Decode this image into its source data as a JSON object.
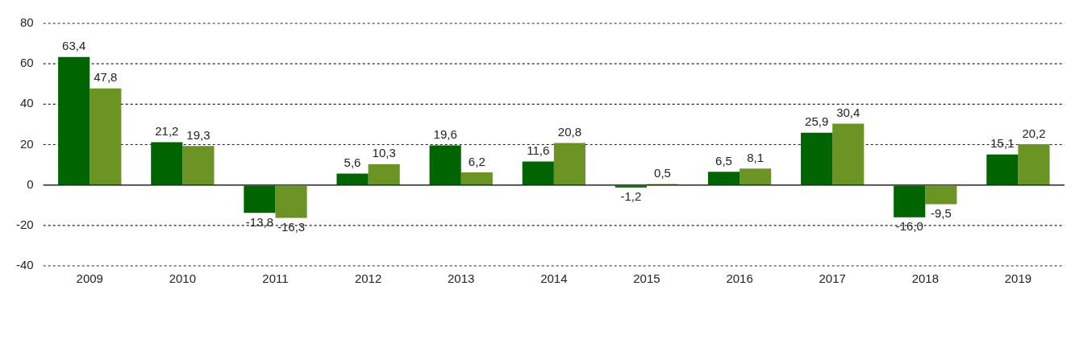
{
  "chart_data": {
    "type": "bar",
    "categories": [
      "2009",
      "2010",
      "2011",
      "2012",
      "2013",
      "2014",
      "2015",
      "2016",
      "2017",
      "2018",
      "2019"
    ],
    "series": [
      {
        "color": "#006400",
        "values": [
          63.4,
          21.2,
          -13.8,
          5.6,
          19.6,
          11.6,
          -1.2,
          6.5,
          25.9,
          -16.0,
          15.1
        ],
        "value_labels": [
          "63,4",
          "21,2",
          "-13,8",
          "5,6",
          "19,6",
          "11,6",
          "-1,2",
          "6,5",
          "25,9",
          "-16,0",
          "15,1"
        ]
      },
      {
        "color": "#6b9424",
        "values": [
          47.8,
          19.3,
          -16.3,
          10.3,
          6.2,
          20.8,
          0.5,
          8.1,
          30.4,
          -9.5,
          20.2
        ],
        "value_labels": [
          "47,8",
          "19,3",
          "-16,3",
          "10,3",
          "6,2",
          "20,8",
          "0,5",
          "8,1",
          "30,4",
          "-9,5",
          "20,2"
        ]
      }
    ],
    "ylim": [
      -40,
      80
    ],
    "yticks": [
      -40,
      -20,
      0,
      20,
      40,
      60,
      80
    ],
    "grid": "y"
  }
}
